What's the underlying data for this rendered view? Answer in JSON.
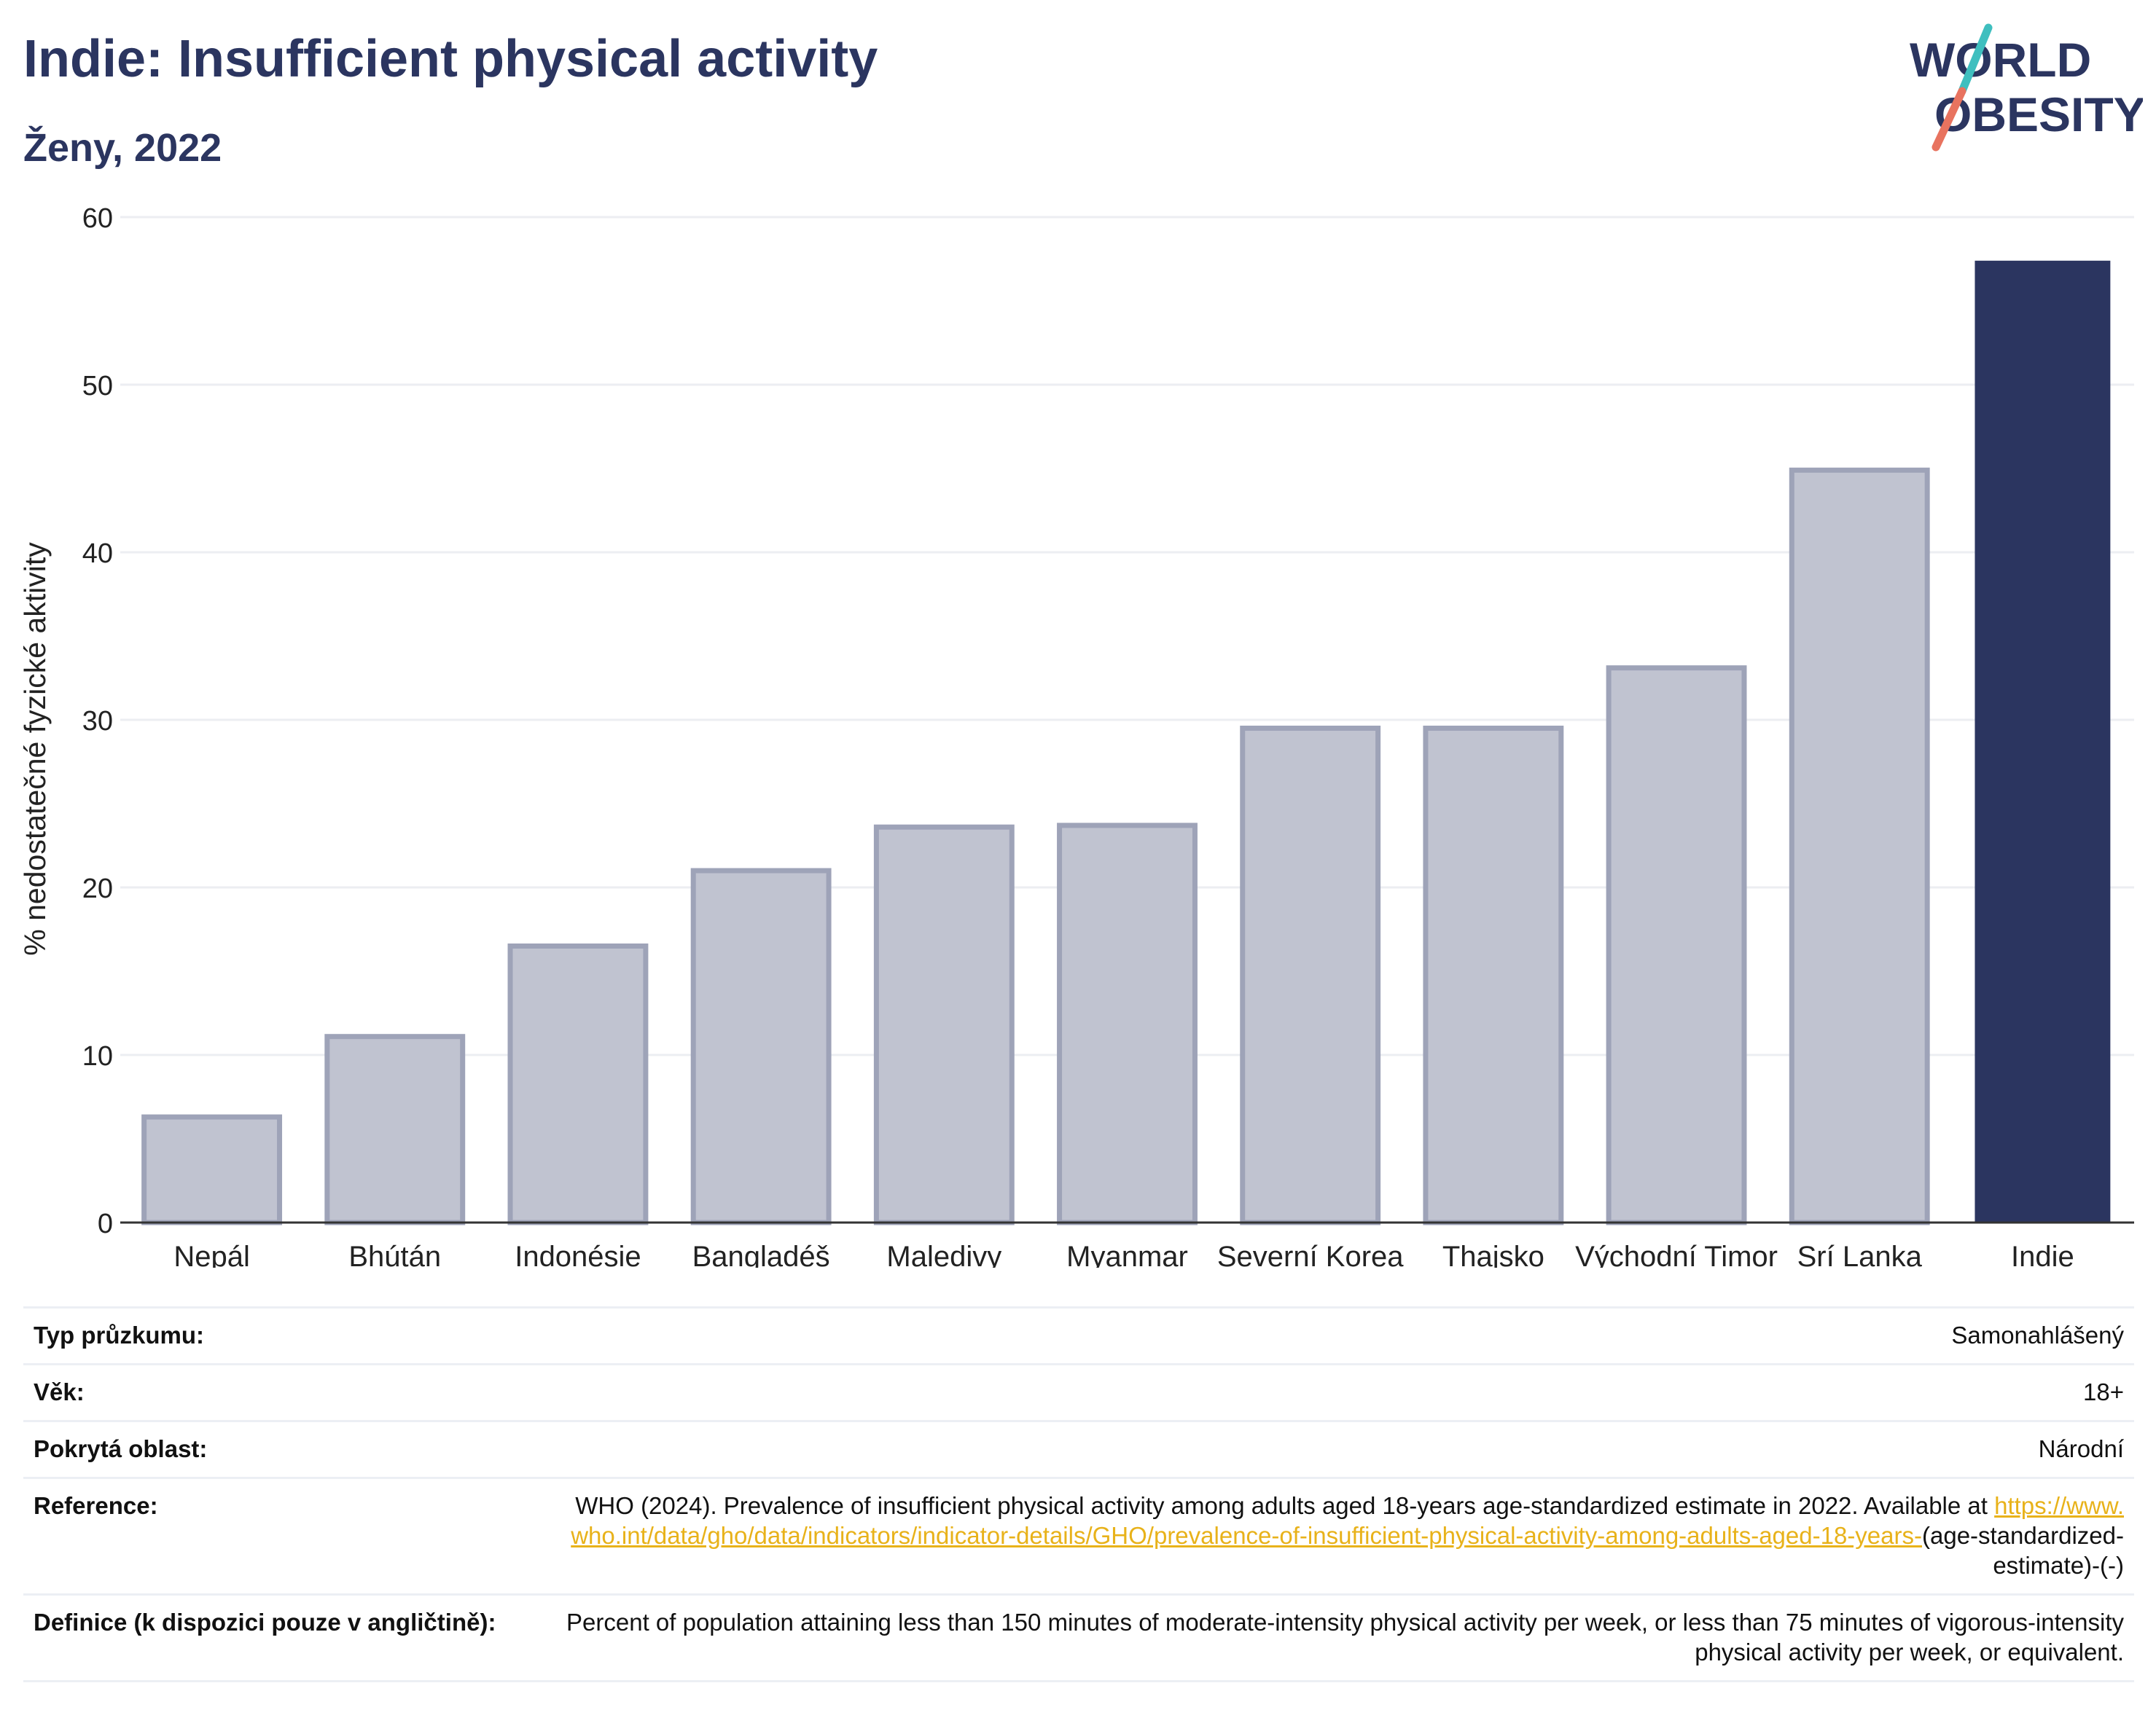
{
  "header": {
    "title": "Indie: Insufficient physical activity",
    "subtitle": "Ženy, 2022"
  },
  "logo": {
    "line1": "WORLD",
    "line2": "OBESITY",
    "colors": {
      "text": "#2b3560",
      "slash_teal": "#3fbfbf",
      "slash_coral": "#e8735f"
    }
  },
  "chart_data": {
    "type": "bar",
    "categories": [
      "Nepál",
      "Bhútán",
      "Indonésie",
      "Bangladéš",
      "Maledivy",
      "Myanmar",
      "Severní Korea",
      "Thajsko",
      "Východní Timor",
      "Srí Lanka",
      "Indie"
    ],
    "values": [
      6.3,
      11.1,
      16.5,
      21.0,
      23.6,
      23.7,
      29.5,
      29.5,
      33.1,
      44.9,
      57.4
    ],
    "highlight": "Indie",
    "ylabel": "% nedostatečné fyzické aktivity",
    "xlabel": "",
    "ylim": [
      0,
      60
    ],
    "yticks": [
      0,
      10,
      20,
      30,
      40,
      50,
      60
    ],
    "grid": true,
    "colors": {
      "bar": "#c0c3d0",
      "bar_border": "#9ea3b8",
      "highlight": "#2b3560",
      "grid": "#eceef2",
      "axis": "#333333"
    }
  },
  "info": {
    "survey_type": {
      "label": "Typ průzkumu:",
      "value": "Samonahlášený"
    },
    "age": {
      "label": "Věk:",
      "value": "18+"
    },
    "coverage": {
      "label": "Pokrytá oblast:",
      "value": "Národní"
    },
    "reference": {
      "label": "Reference:",
      "text": "WHO (2024). Prevalence of insufficient physical activity among adults aged 18-years age-standardized estimate in 2022. Available at",
      "link": "https://www.who.int/data/gho/data/indicators/indicator-details/GHO/prevalence-of-insufficient-physical-activity-among-adults-aged-18-years-",
      "suffix": "(age-standardized-estimate)-(-)"
    },
    "definition": {
      "label": "Definice (k dispozici pouze v angličtině):",
      "value": "Percent of population attaining less than 150 minutes of moderate-intensity physical activity per week, or less than 75 minutes of vigorous-intensity physical activity per week, or equivalent."
    }
  }
}
